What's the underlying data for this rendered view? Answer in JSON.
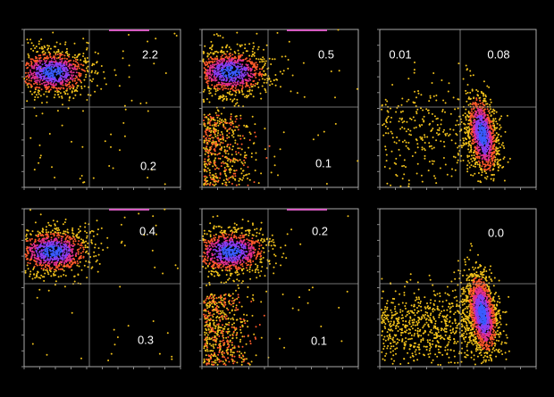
{
  "panels": [
    {
      "labels": [
        "2.2",
        "0.2"
      ]
    },
    {
      "labels": [
        "0.5",
        "0.1"
      ]
    },
    {
      "labels": [
        "0.01",
        "0.08"
      ]
    },
    {
      "labels": [
        "0.4",
        "0.3"
      ]
    },
    {
      "labels": [
        "0.2",
        "0.1"
      ]
    },
    {
      "labels": [
        "0.0"
      ]
    }
  ]
}
